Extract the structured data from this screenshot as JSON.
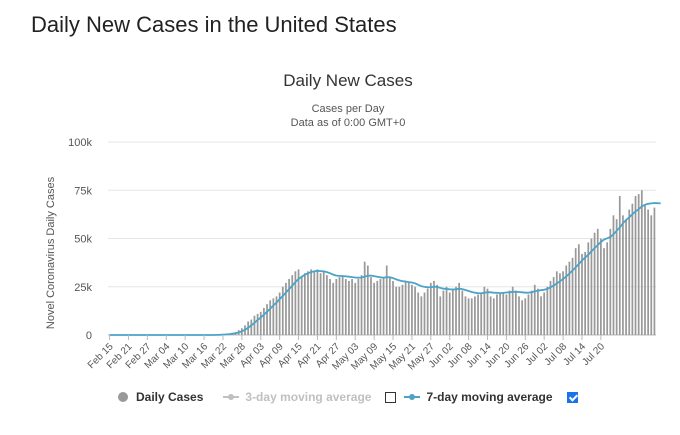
{
  "page_heading": "Daily New Cases in the United States",
  "chart_data": {
    "type": "bar",
    "title": "Daily New Cases",
    "subtitle_line1": "Cases per Day",
    "subtitle_line2": "Data as of 0:00 GMT+0",
    "ylabel": "Novel Coronavirus Daily Cases",
    "xlabel": "",
    "ylim": [
      0,
      100000
    ],
    "y_tick_values": [
      0,
      25000,
      50000,
      75000,
      100000
    ],
    "y_tick_labels": [
      "0",
      "25k",
      "50k",
      "75k",
      "100k"
    ],
    "x_tick_labels": [
      "Feb 15",
      "Feb 21",
      "Feb 27",
      "Mar 04",
      "Mar 10",
      "Mar 16",
      "Mar 22",
      "Mar 28",
      "Apr 03",
      "Apr 09",
      "Apr 15",
      "Apr 21",
      "Apr 27",
      "May 03",
      "May 09",
      "May 15",
      "May 21",
      "May 27",
      "Jun 02",
      "Jun 08",
      "Jun 14",
      "Jun 20",
      "Jun 26",
      "Jul 02",
      "Jul 08",
      "Jul 14",
      "Jul 20"
    ],
    "x_tick_step_days": 6,
    "grid": "horizontal",
    "legend_position": "bottom",
    "bar_color": "#999999",
    "line_color": "#4aa3c8",
    "series": [
      {
        "name": "Daily Cases",
        "type": "bar",
        "visible": true,
        "values": [
          0,
          0,
          0,
          0,
          0,
          0,
          0,
          0,
          0,
          0,
          0,
          0,
          0,
          0,
          0,
          0,
          0,
          0,
          0,
          0,
          0,
          0,
          0,
          0,
          0,
          0,
          0,
          0,
          0,
          0,
          0,
          0,
          0,
          0,
          100,
          200,
          300,
          500,
          700,
          1000,
          1500,
          2500,
          3500,
          5000,
          7000,
          8000,
          10000,
          11000,
          12000,
          14000,
          16000,
          18000,
          19000,
          20000,
          22000,
          25000,
          27000,
          29000,
          31000,
          33000,
          34000,
          30000,
          32000,
          33000,
          34000,
          33000,
          34000,
          32000,
          33000,
          31000,
          29000,
          27000,
          29000,
          30000,
          31000,
          29000,
          28000,
          29000,
          27000,
          29000,
          31000,
          38000,
          36000,
          30000,
          27000,
          28000,
          29000,
          30000,
          36000,
          30000,
          28000,
          25000,
          25000,
          26000,
          28000,
          27000,
          26000,
          25000,
          22000,
          20000,
          22000,
          24000,
          27000,
          28000,
          26000,
          20000,
          23000,
          25000,
          22000,
          24000,
          25000,
          27000,
          23000,
          20000,
          19000,
          19000,
          20000,
          21000,
          22000,
          25000,
          24000,
          20000,
          19000,
          21000,
          22000,
          22000,
          21000,
          23000,
          25000,
          23000,
          20000,
          18000,
          19000,
          21000,
          23000,
          26000,
          24000,
          20000,
          22000,
          25000,
          28000,
          30000,
          33000,
          32000,
          33000,
          36000,
          38000,
          40000,
          45000,
          47000,
          42000,
          43000,
          48000,
          50000,
          53000,
          55000,
          50000,
          45000,
          48000,
          55000,
          62000,
          60000,
          72000,
          62000,
          60000,
          65000,
          68000,
          72000,
          73000,
          75000,
          67000,
          65000,
          62000,
          66000
        ]
      },
      {
        "name": "3-day moving average",
        "type": "line",
        "visible": false
      },
      {
        "name": "7-day moving average",
        "type": "line",
        "visible": true,
        "values": [
          0,
          0,
          0,
          0,
          0,
          0,
          0,
          0,
          0,
          0,
          0,
          0,
          0,
          0,
          0,
          0,
          0,
          0,
          0,
          0,
          0,
          0,
          0,
          0,
          0,
          0,
          0,
          0,
          0,
          0,
          0,
          0,
          0,
          0,
          50,
          100,
          200,
          300,
          450,
          650,
          900,
          1300,
          1900,
          2700,
          3800,
          5000,
          6300,
          7700,
          9000,
          10500,
          12000,
          13700,
          15300,
          16800,
          18500,
          20200,
          22000,
          23800,
          25600,
          27400,
          29000,
          30200,
          31200,
          32000,
          32600,
          33000,
          33200,
          33100,
          33000,
          32600,
          32000,
          31300,
          30800,
          30600,
          30500,
          30400,
          30200,
          30000,
          29800,
          29700,
          29800,
          30200,
          30700,
          30800,
          30500,
          30200,
          29900,
          29700,
          30000,
          29900,
          29500,
          28800,
          28300,
          27900,
          27700,
          27400,
          27200,
          26800,
          26000,
          25300,
          24900,
          24700,
          24800,
          25000,
          24900,
          24400,
          24000,
          23900,
          23700,
          23600,
          23700,
          24000,
          23800,
          23300,
          22800,
          22300,
          21900,
          21700,
          21600,
          21900,
          22200,
          22100,
          21900,
          21800,
          21700,
          21800,
          22000,
          22100,
          22400,
          22400,
          22300,
          22100,
          21900,
          21900,
          22100,
          22600,
          23000,
          23200,
          23400,
          23900,
          24700,
          25600,
          26700,
          27800,
          29000,
          30300,
          31800,
          33400,
          35000,
          36800,
          38600,
          40100,
          41600,
          43300,
          45000,
          46600,
          48200,
          49500,
          50100,
          50800,
          52200,
          54000,
          55700,
          57900,
          59600,
          61000,
          62600,
          64000,
          65200,
          66600,
          67500,
          68000,
          68200,
          68400,
          68300,
          68200
        ]
      }
    ]
  },
  "legend": {
    "item1_label": "Daily Cases",
    "item2_label": "3-day moving average",
    "item3_label": "7-day moving average",
    "item2_checked": false,
    "item3_checked": true
  }
}
